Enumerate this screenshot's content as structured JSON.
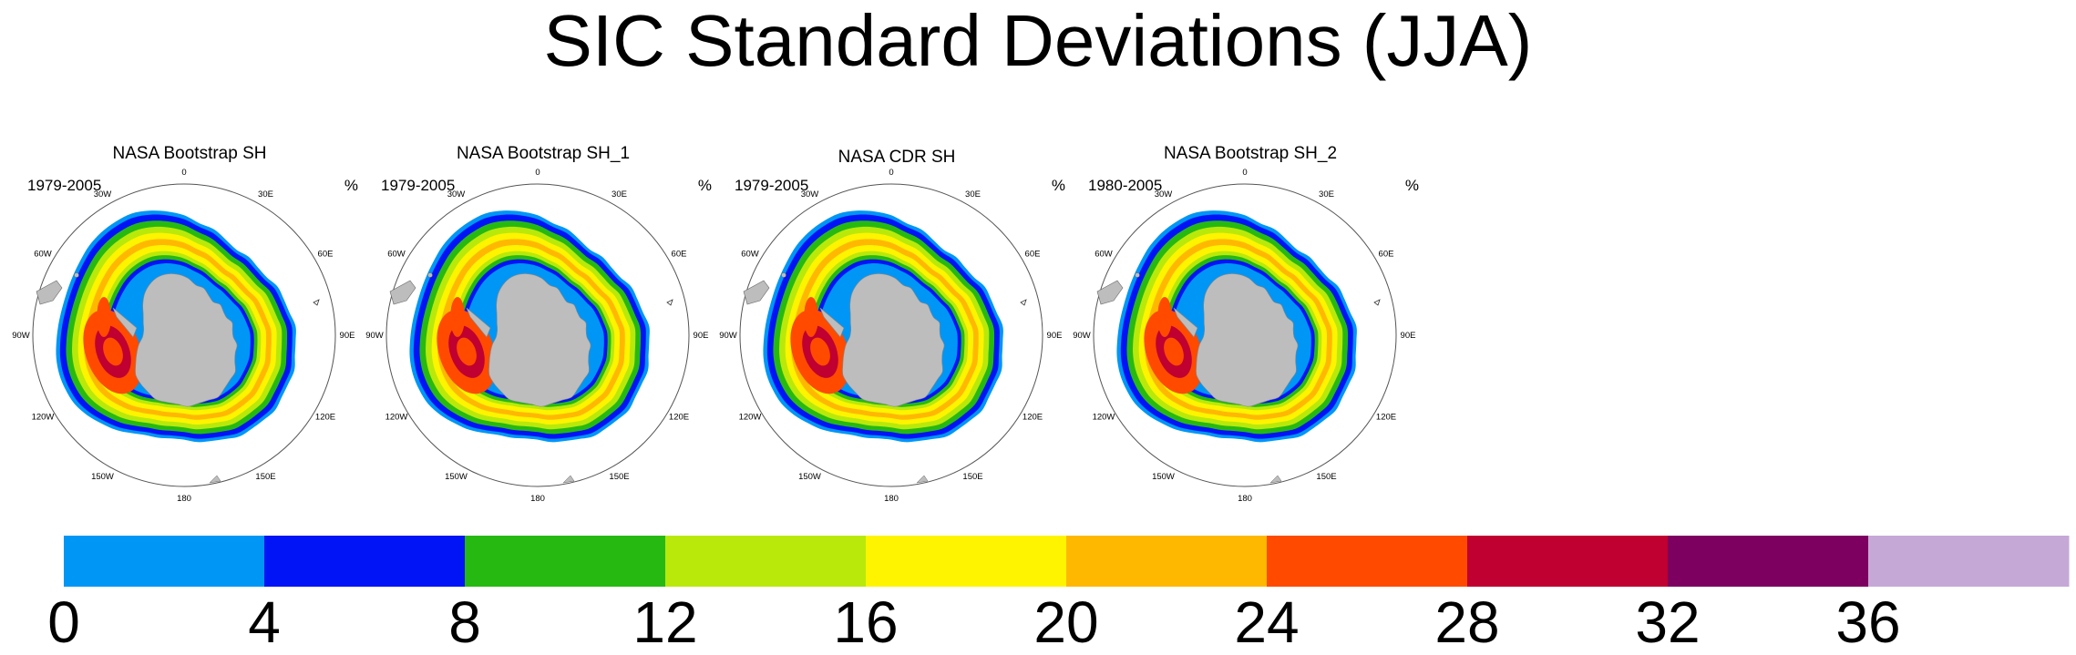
{
  "title": "SIC Standard Deviations (JJA)",
  "panels": [
    {
      "title": "NASA Bootstrap SH",
      "years": "1979-2005",
      "units": "%"
    },
    {
      "title": "NASA Bootstrap SH_1",
      "years": "1979-2005",
      "units": "%"
    },
    {
      "title": "NASA CDR SH",
      "years": "1979-2005",
      "units": "%"
    },
    {
      "title": "NASA Bootstrap SH_2",
      "years": "1980-2005",
      "units": "%"
    }
  ],
  "longitude_labels": [
    "0",
    "30E",
    "60E",
    "90E",
    "120E",
    "150E",
    "180",
    "150W",
    "120W",
    "90W",
    "60W",
    "30W"
  ],
  "colorbar": {
    "ticks": [
      "0",
      "4",
      "8",
      "12",
      "16",
      "20",
      "24",
      "28",
      "32",
      "36"
    ],
    "colors": [
      "#0096f5",
      "#0014f5",
      "#26b912",
      "#b9e90a",
      "#fff400",
      "#ffb800",
      "#ff4a00",
      "#bf0030",
      "#7d0060",
      "#c6a8d6"
    ]
  },
  "legend": {
    "land": "#bdbdbd"
  }
}
